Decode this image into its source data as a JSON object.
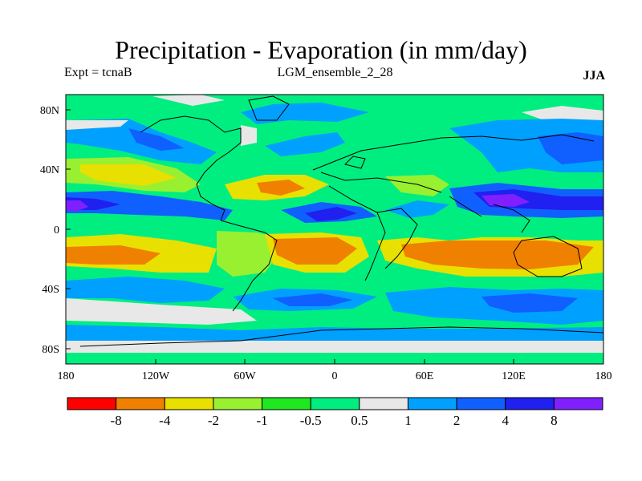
{
  "title": "Precipitation - Evaporation (in mm/day)",
  "left_label": "Expt = tcnaB",
  "center_label": "LGM_ensemble_2_28",
  "right_label": "JJA",
  "lat_ticks": [
    "80N",
    "40N",
    "0",
    "40S",
    "80S"
  ],
  "lon_ticks": [
    "180",
    "120W",
    "60W",
    "0",
    "60E",
    "120E",
    "180"
  ],
  "colorbar": {
    "colors": [
      "#ff0000",
      "#f08000",
      "#e8e000",
      "#98f030",
      "#20e820",
      "#00ee80",
      "#e8e8e8",
      "#00a0ff",
      "#1060ff",
      "#2020f0",
      "#8020ff"
    ],
    "labels": [
      "-8",
      "-4",
      "-2",
      "-1",
      "-0.5",
      "0.5",
      "1",
      "2",
      "4",
      "8"
    ]
  }
}
